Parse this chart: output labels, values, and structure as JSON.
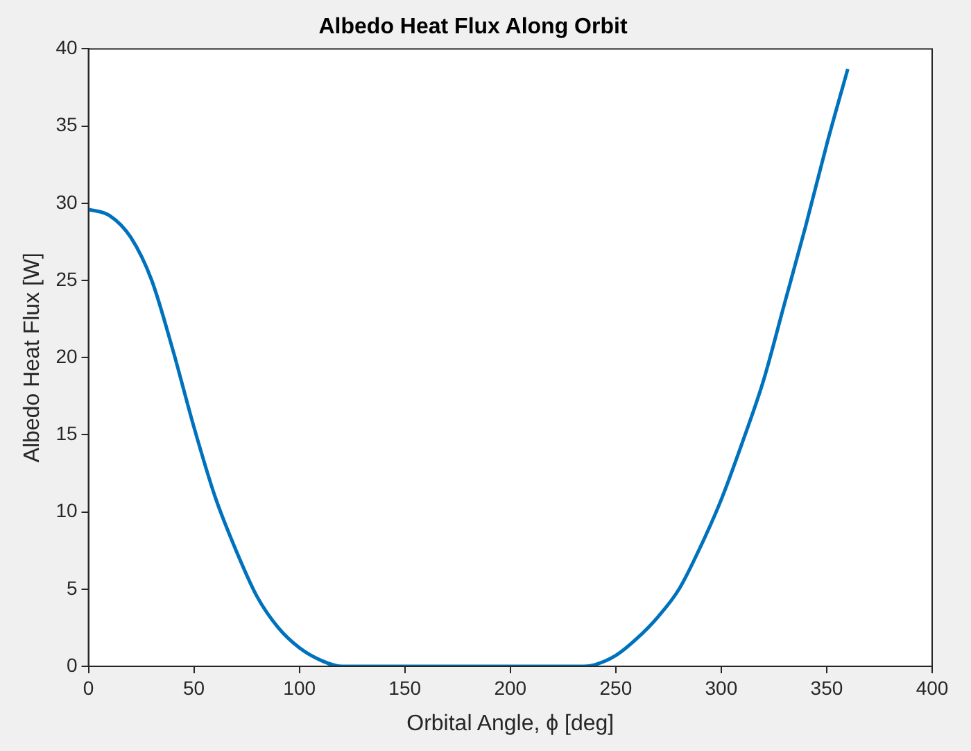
{
  "chart_data": {
    "type": "line",
    "title": "Albedo Heat Flux Along Orbit",
    "xlabel": "Orbital Angle, ϕ [deg]",
    "ylabel": "Albedo Heat Flux [W]",
    "xlim": [
      0,
      400
    ],
    "xticks": [
      0,
      50,
      100,
      150,
      200,
      250,
      300,
      350,
      400
    ],
    "ylim": [
      0,
      40
    ],
    "yticks": [
      0,
      5,
      10,
      15,
      20,
      25,
      30,
      35,
      40
    ],
    "grid": false,
    "legend": false,
    "marker": "none",
    "line_style": "solid",
    "series": [
      {
        "color": "#0072bd",
        "x": [
          0,
          10,
          20,
          30,
          40,
          50,
          60,
          70,
          80,
          90,
          100,
          110,
          120,
          125,
          150,
          200,
          235,
          240,
          250,
          260,
          270,
          280,
          290,
          300,
          310,
          320,
          330,
          340,
          350,
          360
        ],
        "values": [
          29.6,
          29.2,
          27.8,
          25,
          20.5,
          15.5,
          11,
          7.5,
          4.5,
          2.5,
          1.2,
          0.4,
          0,
          0,
          0,
          0,
          0,
          0.1,
          0.7,
          1.8,
          3.2,
          5,
          7.7,
          10.8,
          14.5,
          18.5,
          23.5,
          28.5,
          33.8,
          38.7
        ]
      }
    ]
  }
}
